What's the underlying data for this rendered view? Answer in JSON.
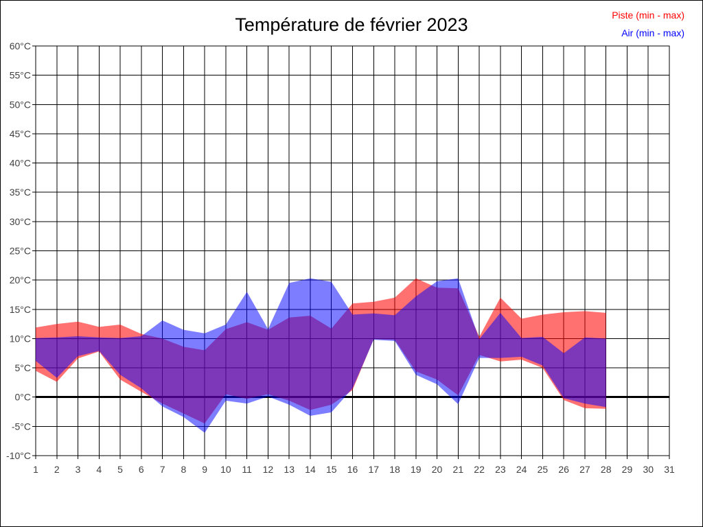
{
  "header": {
    "title": "Température de février 2023"
  },
  "legend": {
    "items": [
      {
        "label": "Piste (min - max)",
        "color": "#ff0000"
      },
      {
        "label": "Air (min - max)",
        "color": "#0000ff"
      }
    ]
  },
  "chart_data": {
    "type": "area",
    "title": "Température de février 2023",
    "xlabel": "",
    "ylabel": "",
    "x_unit": "jour du mois",
    "xlim": [
      1,
      31
    ],
    "ylim": [
      -10,
      60
    ],
    "grid": true,
    "grid_color": "#000000",
    "axis_text_color": "#404040",
    "legend_position": "top-right",
    "zero_line": {
      "value": 0,
      "color": "#000000",
      "width": 3
    },
    "x_tick_labels": [
      "1",
      "2",
      "3",
      "4",
      "5",
      "6",
      "7",
      "8",
      "9",
      "10",
      "11",
      "12",
      "13",
      "14",
      "15",
      "16",
      "17",
      "18",
      "19",
      "20",
      "21",
      "22",
      "23",
      "24",
      "25",
      "26",
      "27",
      "28",
      "29",
      "30",
      "31"
    ],
    "y_ticks": [
      {
        "value": 60,
        "label": "60°C"
      },
      {
        "value": 55,
        "label": "55°C"
      },
      {
        "value": 50,
        "label": "50°C"
      },
      {
        "value": 45,
        "label": "45°C"
      },
      {
        "value": 40,
        "label": "40°C"
      },
      {
        "value": 35,
        "label": "35°C"
      },
      {
        "value": 30,
        "label": "30°C"
      },
      {
        "value": 25,
        "label": "25°C"
      },
      {
        "value": 20,
        "label": "20°C"
      },
      {
        "value": 15,
        "label": "15°C"
      },
      {
        "value": 10,
        "label": "10°C"
      },
      {
        "value": 5,
        "label": "5°C"
      },
      {
        "value": 0,
        "label": "0°C"
      },
      {
        "value": -5,
        "label": "-5°C"
      },
      {
        "value": -10,
        "label": "-10°C"
      }
    ],
    "series": [
      {
        "name": "Piste (min - max)",
        "role": "piste",
        "color": "#ff0000",
        "opacity": 0.56,
        "days": [
          1,
          2,
          3,
          4,
          5,
          6,
          7,
          8,
          9,
          10,
          11,
          12,
          13,
          14,
          15,
          16,
          17,
          18,
          19,
          20,
          21,
          22,
          23,
          24,
          25,
          26,
          27,
          28
        ],
        "min": [
          4.5,
          2.6,
          6.6,
          7.8,
          3.0,
          0.9,
          -1.1,
          -2.8,
          -4.5,
          0.5,
          -0.3,
          0.5,
          -0.6,
          -2.2,
          -1.3,
          1.2,
          9.9,
          9.8,
          4.4,
          3.0,
          0.3,
          7.2,
          6.1,
          6.4,
          5.0,
          -0.5,
          -1.9,
          -2.0
        ],
        "max": [
          11.9,
          12.5,
          12.9,
          12.0,
          12.4,
          10.8,
          10.0,
          8.6,
          8.0,
          11.6,
          12.8,
          11.5,
          13.6,
          13.9,
          11.7,
          16.0,
          16.3,
          17.0,
          20.3,
          18.7,
          18.6,
          10.3,
          17.0,
          13.4,
          14.1,
          14.5,
          14.7,
          14.4
        ]
      },
      {
        "name": "Air (min - max)",
        "role": "air",
        "color": "#0000ff",
        "opacity": 0.51,
        "days": [
          1,
          2,
          3,
          4,
          5,
          6,
          7,
          8,
          9,
          10,
          11,
          12,
          13,
          14,
          15,
          16,
          17,
          18,
          19,
          20,
          21,
          22,
          23,
          24,
          25,
          26,
          27,
          28
        ],
        "min": [
          6.2,
          3.3,
          7.0,
          7.9,
          3.8,
          1.5,
          -1.6,
          -3.4,
          -6.1,
          -0.6,
          -1.1,
          0.1,
          -1.3,
          -3.2,
          -2.6,
          1.5,
          9.8,
          9.6,
          3.8,
          2.2,
          -1.2,
          6.7,
          6.7,
          6.9,
          5.4,
          -0.2,
          -1.1,
          -1.7
        ],
        "max": [
          10.1,
          10.2,
          10.4,
          10.2,
          10.1,
          10.4,
          13.1,
          11.5,
          10.9,
          12.4,
          18.0,
          11.6,
          19.5,
          20.3,
          19.7,
          14.1,
          14.3,
          14.0,
          17.2,
          19.8,
          20.3,
          9.9,
          14.4,
          10.1,
          10.3,
          7.5,
          10.2,
          10.0
        ]
      }
    ]
  }
}
